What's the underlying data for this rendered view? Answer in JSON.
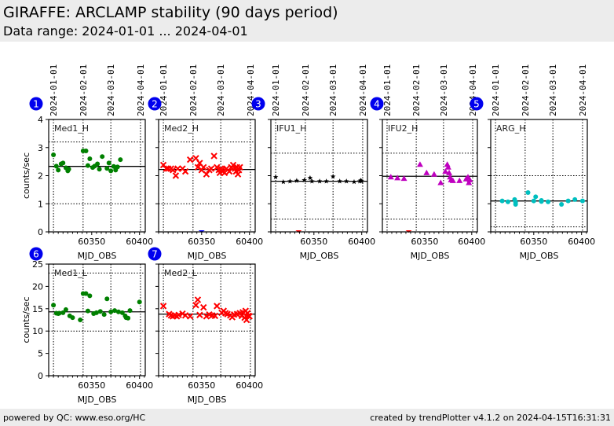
{
  "header": {
    "title": "GIRAFFE: ARCLAMP stability (90 days period)",
    "subtitle": "Data range: 2024-01-01 ... 2024-04-01"
  },
  "footer": {
    "left": "powered by QC: www.eso.org/HC",
    "right": "created by trendPlotter v4.1.2 on 2024-04-15T16:31:31"
  },
  "colors": {
    "header_bg": "#ececec",
    "badge": "#0000ee",
    "green": "#008000",
    "red": "#ff0000",
    "black": "#000000",
    "magenta": "#bf00bf",
    "cyan": "#00bfbf",
    "blue": "#0000ff"
  },
  "chart_data": [
    {
      "type": "scatter",
      "id": 1,
      "label": "Med1_H",
      "marker": "circle",
      "color": "#008000",
      "xlabel": "MJD_OBS",
      "ylabel": "counts/sec",
      "xlim": [
        60305,
        60406
      ],
      "ylim": [
        0,
        4
      ],
      "yticks": [
        0,
        1,
        2,
        3,
        4
      ],
      "xticks": [
        60350,
        60400
      ],
      "date_ticks": [
        {
          "mjd": 60310,
          "label": "2024-01-01"
        },
        {
          "mjd": 60341,
          "label": "2024-02-01"
        },
        {
          "mjd": 60370,
          "label": "2024-03-01"
        },
        {
          "mjd": 60401,
          "label": "2024-04-01"
        }
      ],
      "mean": 2.33,
      "hlines": [
        1.0,
        3.2
      ],
      "x": [
        60310,
        60313,
        60315,
        60318,
        60320,
        60323,
        60325,
        60326,
        60341,
        60344,
        60346,
        60348,
        60351,
        60353,
        60356,
        60358,
        60361,
        60366,
        60368,
        60370,
        60373,
        60375,
        60377,
        60380
      ],
      "y": [
        2.74,
        2.34,
        2.2,
        2.42,
        2.45,
        2.28,
        2.17,
        2.23,
        2.88,
        2.88,
        2.36,
        2.6,
        2.29,
        2.34,
        2.42,
        2.23,
        2.68,
        2.26,
        2.45,
        2.17,
        2.33,
        2.2,
        2.31,
        2.57
      ],
      "outliers": []
    },
    {
      "type": "scatter",
      "id": 2,
      "label": "Med2_H",
      "marker": "x",
      "color": "#ff0000",
      "xlabel": "MJD_OBS",
      "ylabel": "",
      "xlim": [
        60305,
        60406
      ],
      "ylim": [
        0,
        4
      ],
      "yticks": [
        0,
        1,
        2,
        3,
        4
      ],
      "xticks": [
        60350,
        60400
      ],
      "date_ticks": [
        {
          "mjd": 60310,
          "label": "2024-01-01"
        },
        {
          "mjd": 60341,
          "label": "2024-02-01"
        },
        {
          "mjd": 60370,
          "label": "2024-03-01"
        },
        {
          "mjd": 60401,
          "label": "2024-04-01"
        }
      ],
      "mean": 2.22,
      "hlines": [
        1.0,
        3.2
      ],
      "x": [
        60310,
        60313,
        60315,
        60318,
        60320,
        60323,
        60325,
        60330,
        60333,
        60338,
        60344,
        60346,
        60348,
        60350,
        60352,
        60355,
        60358,
        60360,
        60363,
        60366,
        60368,
        60369,
        60370,
        60371,
        60372,
        60374,
        60376,
        60379,
        60381,
        60383,
        60385,
        60386,
        60387,
        60388,
        60389,
        60390
      ],
      "y": [
        2.38,
        2.25,
        2.25,
        2.25,
        2.2,
        2.0,
        2.25,
        2.25,
        2.15,
        2.57,
        2.62,
        2.3,
        2.45,
        2.2,
        2.3,
        2.05,
        2.2,
        2.25,
        2.7,
        2.3,
        2.2,
        2.1,
        2.25,
        2.2,
        2.15,
        2.1,
        2.25,
        2.15,
        2.3,
        2.38,
        2.25,
        2.15,
        2.3,
        2.05,
        2.2,
        2.3
      ],
      "outliers": [
        {
          "x": 60350,
          "y": 0,
          "color": "#0000ff"
        }
      ]
    },
    {
      "type": "scatter",
      "id": 3,
      "label": "IFU1_H",
      "marker": "star",
      "color": "#000000",
      "xlabel": "MJD_OBS",
      "ylabel": "",
      "xlim": [
        60305,
        60406
      ],
      "ylim": [
        0,
        4
      ],
      "yticks": [
        0,
        1,
        2,
        3,
        4
      ],
      "xticks": [
        60350,
        60400
      ],
      "date_ticks": [
        {
          "mjd": 60310,
          "label": "2024-01-01"
        },
        {
          "mjd": 60341,
          "label": "2024-02-01"
        },
        {
          "mjd": 60370,
          "label": "2024-03-01"
        },
        {
          "mjd": 60401,
          "label": "2024-04-01"
        }
      ],
      "mean": 1.8,
      "hlines": [
        0.45,
        2.8
      ],
      "x": [
        60310,
        60318,
        60325,
        60332,
        60340,
        60346,
        60348,
        60356,
        60363,
        60370,
        60377,
        60384,
        60392,
        60398,
        60399,
        60400
      ],
      "y": [
        1.95,
        1.78,
        1.8,
        1.82,
        1.84,
        1.92,
        1.8,
        1.8,
        1.8,
        1.97,
        1.8,
        1.8,
        1.78,
        1.8,
        1.83,
        1.8
      ],
      "outliers": [
        {
          "x": 60334,
          "y": 0,
          "color": "#ff0000"
        }
      ]
    },
    {
      "type": "scatter",
      "id": 4,
      "label": "IFU2_H",
      "marker": "triangle",
      "color": "#bf00bf",
      "xlabel": "MJD_OBS",
      "ylabel": "",
      "xlim": [
        60305,
        60406
      ],
      "ylim": [
        0,
        4
      ],
      "yticks": [
        0,
        1,
        2,
        3,
        4
      ],
      "xticks": [
        60350,
        60400
      ],
      "date_ticks": [
        {
          "mjd": 60310,
          "label": "2024-01-01"
        },
        {
          "mjd": 60341,
          "label": "2024-02-01"
        },
        {
          "mjd": 60370,
          "label": "2024-03-01"
        },
        {
          "mjd": 60401,
          "label": "2024-04-01"
        }
      ],
      "mean": 1.98,
      "hlines": [
        0.45,
        2.8
      ],
      "x": [
        60314,
        60321,
        60328,
        60345,
        60352,
        60360,
        60367,
        60372,
        60374,
        60375,
        60376,
        60377,
        60378,
        60380,
        60387,
        60394,
        60396,
        60397,
        60398
      ],
      "y": [
        1.95,
        1.92,
        1.9,
        2.4,
        2.1,
        2.05,
        1.75,
        2.15,
        2.4,
        2.3,
        2.1,
        1.95,
        1.85,
        1.82,
        1.82,
        1.88,
        1.95,
        1.75,
        1.85
      ],
      "outliers": [
        {
          "x": 60333,
          "y": 0,
          "color": "#ff0000"
        }
      ]
    },
    {
      "type": "scatter",
      "id": 5,
      "label": "ARG_H",
      "marker": "circle",
      "color": "#00bfbf",
      "xlabel": "MJD_OBS",
      "ylabel": "",
      "xlim": [
        60305,
        60406
      ],
      "ylim": [
        0,
        4
      ],
      "yticks": [
        0,
        1,
        2,
        3,
        4
      ],
      "xticks": [
        60350,
        60400
      ],
      "date_ticks": [
        {
          "mjd": 60310,
          "label": "2024-01-01"
        },
        {
          "mjd": 60341,
          "label": "2024-02-01"
        },
        {
          "mjd": 60370,
          "label": "2024-03-01"
        },
        {
          "mjd": 60401,
          "label": "2024-04-01"
        }
      ],
      "mean": 1.1,
      "hlines": [
        0.18,
        2.0
      ],
      "x": [
        60317,
        60323,
        60330,
        60331,
        60331,
        60344,
        60350,
        60352,
        60358,
        60358,
        60365,
        60379,
        60386,
        60393,
        60401
      ],
      "y": [
        1.1,
        1.07,
        1.15,
        1.05,
        0.98,
        1.4,
        1.1,
        1.25,
        1.12,
        1.08,
        1.07,
        0.98,
        1.1,
        1.15,
        1.1
      ],
      "outliers": []
    },
    {
      "type": "scatter",
      "id": 6,
      "label": "Med1_L",
      "marker": "circle",
      "color": "#008000",
      "xlabel": "MJD_OBS",
      "ylabel": "counts/sec",
      "xlim": [
        60305,
        60406
      ],
      "ylim": [
        0,
        25
      ],
      "yticks": [
        0,
        5,
        10,
        15,
        20,
        25
      ],
      "xticks": [
        60350,
        60400
      ],
      "date_ticks": [
        {
          "mjd": 60310,
          "label": ""
        },
        {
          "mjd": 60341,
          "label": ""
        },
        {
          "mjd": 60370,
          "label": ""
        },
        {
          "mjd": 60401,
          "label": ""
        }
      ],
      "mean": 14.3,
      "hlines": [
        10.0,
        23.0
      ],
      "x": [
        60310,
        60313,
        60315,
        60316,
        60320,
        60323,
        60327,
        60330,
        60338,
        60341,
        60344,
        60346,
        60348,
        60352,
        60355,
        60359,
        60363,
        60366,
        60370,
        60374,
        60378,
        60382,
        60385,
        60386,
        60388,
        60390,
        60400
      ],
      "y": [
        15.8,
        14.0,
        13.9,
        14.0,
        14.1,
        14.8,
        13.4,
        13.0,
        12.5,
        18.4,
        18.4,
        14.5,
        17.9,
        13.9,
        14.1,
        14.4,
        13.7,
        17.2,
        14.3,
        14.6,
        14.3,
        14.1,
        13.4,
        13.0,
        12.9,
        14.6,
        16.5
      ],
      "outliers": []
    },
    {
      "type": "scatter",
      "id": 7,
      "label": "Med2_L",
      "marker": "x",
      "color": "#ff0000",
      "xlabel": "MJD_OBS",
      "ylabel": "",
      "xlim": [
        60305,
        60406
      ],
      "ylim": [
        0,
        25
      ],
      "yticks": [
        0,
        5,
        10,
        15,
        20,
        25
      ],
      "xticks": [
        60350,
        60400
      ],
      "date_ticks": [
        {
          "mjd": 60310,
          "label": ""
        },
        {
          "mjd": 60341,
          "label": ""
        },
        {
          "mjd": 60370,
          "label": ""
        },
        {
          "mjd": 60401,
          "label": ""
        }
      ],
      "mean": 13.8,
      "hlines": [
        10.0,
        23.0
      ],
      "x": [
        60310,
        60316,
        60318,
        60320,
        60322,
        60324,
        60326,
        60330,
        60333,
        60338,
        60344,
        60346,
        60348,
        60352,
        60355,
        60358,
        60361,
        60364,
        60366,
        60371,
        60373,
        60375,
        60377,
        60380,
        60382,
        60384,
        60387,
        60390,
        60392,
        60393,
        60395,
        60396,
        60397,
        60398,
        60399,
        60400
      ],
      "y": [
        15.6,
        13.8,
        13.5,
        13.3,
        13.5,
        13.3,
        13.6,
        13.9,
        13.5,
        13.3,
        15.8,
        17.0,
        13.6,
        15.3,
        13.3,
        13.7,
        13.5,
        13.4,
        15.6,
        14.1,
        14.5,
        14.0,
        13.8,
        13.5,
        13.1,
        13.7,
        13.8,
        14.0,
        13.4,
        14.2,
        13.0,
        14.5,
        12.5,
        14.0,
        13.4,
        13.3
      ],
      "outliers": []
    }
  ]
}
